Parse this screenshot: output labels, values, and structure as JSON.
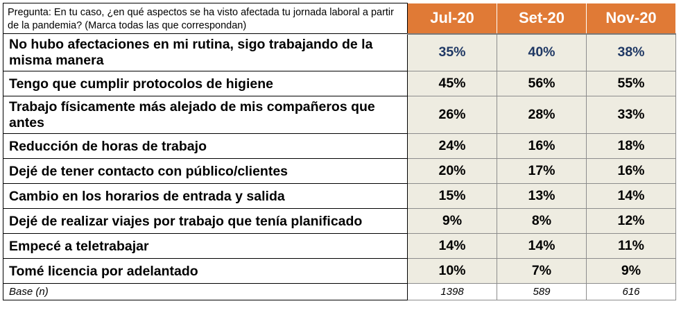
{
  "question": "Pregunta: En tu caso, ¿en qué aspectos se ha visto afectada tu jornada laboral a partir de la pandemia? (Marca todas las que correspondan)",
  "periods": [
    "Jul-20",
    "Set-20",
    "Nov-20"
  ],
  "colors": {
    "header_bg": "#E07A36",
    "cell_bg": "#EEECE1",
    "first_row_text": "#1F3864"
  },
  "rows": [
    {
      "label": "No hubo afectaciones en mi rutina, sigo trabajando de la misma manera",
      "values": [
        "35%",
        "40%",
        "38%"
      ]
    },
    {
      "label": "Tengo que cumplir protocolos de higiene",
      "values": [
        "45%",
        "56%",
        "55%"
      ]
    },
    {
      "label": "Trabajo físicamente más alejado de mis compañeros  que antes",
      "values": [
        "26%",
        "28%",
        "33%"
      ]
    },
    {
      "label": "Reducción de horas de trabajo",
      "values": [
        "24%",
        "16%",
        "18%"
      ]
    },
    {
      "label": "Dejé de tener contacto con público/clientes",
      "values": [
        "20%",
        "17%",
        "16%"
      ]
    },
    {
      "label": "Cambio en los horarios de entrada  y salida",
      "values": [
        "15%",
        "13%",
        "14%"
      ]
    },
    {
      "label": "Dejé de realizar viajes por trabajo que tenía planificado",
      "values": [
        "9%",
        "8%",
        "12%"
      ]
    },
    {
      "label": "Empecé a teletrabajar",
      "values": [
        "14%",
        "14%",
        "11%"
      ]
    },
    {
      "label": "Tomé licencia por adelantado",
      "values": [
        "10%",
        "7%",
        "9%"
      ]
    }
  ],
  "base": {
    "label": "Base (n)",
    "values": [
      "1398",
      "589",
      "616"
    ]
  },
  "chart_data": {
    "type": "table",
    "columns": [
      "Jul-20",
      "Set-20",
      "Nov-20"
    ],
    "unit": "%",
    "series": [
      {
        "name": "No hubo afectaciones en mi rutina, sigo trabajando de la misma manera",
        "values": [
          35,
          40,
          38
        ]
      },
      {
        "name": "Tengo que cumplir protocolos de higiene",
        "values": [
          45,
          56,
          55
        ]
      },
      {
        "name": "Trabajo físicamente más alejado de mis compañeros  que antes",
        "values": [
          26,
          28,
          33
        ]
      },
      {
        "name": "Reducción de horas de trabajo",
        "values": [
          24,
          16,
          18
        ]
      },
      {
        "name": "Dejé de tener contacto con público/clientes",
        "values": [
          20,
          17,
          16
        ]
      },
      {
        "name": "Cambio en los horarios de entrada  y salida",
        "values": [
          15,
          13,
          14
        ]
      },
      {
        "name": "Dejé de realizar viajes por trabajo que tenía planificado",
        "values": [
          9,
          8,
          12
        ]
      },
      {
        "name": "Empecé a teletrabajar",
        "values": [
          14,
          14,
          11
        ]
      },
      {
        "name": "Tomé licencia por adelantado",
        "values": [
          10,
          7,
          9
        ]
      }
    ],
    "base_n": [
      1398,
      589,
      616
    ]
  }
}
